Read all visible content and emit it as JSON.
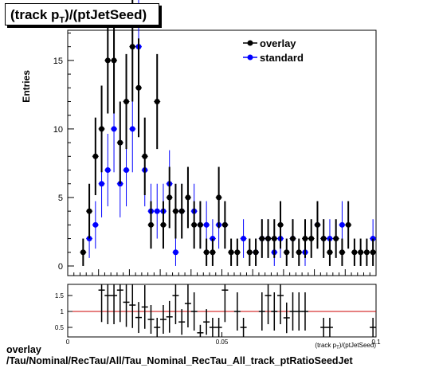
{
  "title": {
    "prefix": "(track p",
    "sub": "T",
    "suffix": ")/(ptJetSeed)"
  },
  "caption": {
    "line1": "overlay",
    "line2": "/Tau/Nominal/RecTau/All/Tau_Nominal_RecTau_All_track_ptRatioSeedJet"
  },
  "colors": {
    "overlay": "#000000",
    "standard": "#0000ff",
    "ratio_line": "#cc0000"
  },
  "chart_data": [
    {
      "type": "scatter",
      "ylabel": "Entries",
      "xlim": [
        0,
        0.1
      ],
      "ylim": [
        -0.7,
        17.2
      ],
      "yticks": [
        "0",
        "5",
        "10",
        "15"
      ],
      "legend": {
        "position": "top-right",
        "entries": [
          "overlay",
          "standard"
        ]
      },
      "series": [
        {
          "name": "overlay",
          "x": [
            0.005,
            0.007,
            0.009,
            0.011,
            0.013,
            0.015,
            0.017,
            0.019,
            0.021,
            0.023,
            0.025,
            0.027,
            0.029,
            0.031,
            0.033,
            0.035,
            0.037,
            0.039,
            0.041,
            0.043,
            0.045,
            0.047,
            0.049,
            0.051,
            0.053,
            0.055,
            0.059,
            0.061,
            0.063,
            0.065,
            0.067,
            0.069,
            0.071,
            0.073,
            0.075,
            0.077,
            0.079,
            0.081,
            0.083,
            0.085,
            0.087,
            0.089,
            0.091,
            0.093,
            0.095,
            0.097,
            0.099
          ],
          "y": [
            1,
            4,
            8,
            10,
            15,
            15,
            9,
            12,
            16,
            13,
            8,
            3,
            12,
            3,
            5,
            4,
            4,
            5,
            3,
            3,
            1,
            1,
            5,
            3,
            1,
            1,
            1,
            1,
            2,
            2,
            2,
            3,
            1,
            2,
            1,
            2,
            2,
            3,
            2,
            1,
            2,
            1,
            3,
            1,
            1,
            1,
            1
          ]
        },
        {
          "name": "standard",
          "x": [
            0.007,
            0.009,
            0.011,
            0.013,
            0.015,
            0.017,
            0.019,
            0.021,
            0.023,
            0.025,
            0.027,
            0.029,
            0.031,
            0.033,
            0.035,
            0.037,
            0.041,
            0.043,
            0.045,
            0.047,
            0.049,
            0.051,
            0.057,
            0.061,
            0.063,
            0.065,
            0.067,
            0.069,
            0.073,
            0.077,
            0.081,
            0.083,
            0.085,
            0.089,
            0.099
          ],
          "y": [
            2,
            3,
            6,
            7,
            10,
            6,
            7,
            10,
            16,
            7,
            4,
            4,
            4,
            6,
            1,
            4,
            4,
            3,
            3,
            2,
            3,
            3,
            2,
            1,
            2,
            2,
            1,
            2,
            2,
            1,
            3,
            2,
            2,
            3,
            2
          ]
        }
      ]
    },
    {
      "type": "scatter",
      "xlim": [
        0,
        0.1
      ],
      "ylim": [
        0.2,
        1.85
      ],
      "xticks": [
        "0",
        "0.05",
        "0.1"
      ],
      "yticks": [
        "0.5",
        "1",
        "1.5"
      ],
      "xlabel": "(track p_T)/(ptJetSeed)",
      "reference_line": 1,
      "series": [
        {
          "name": "overlay/standard",
          "x": [
            0.011,
            0.013,
            0.015,
            0.017,
            0.019,
            0.021,
            0.023,
            0.025,
            0.027,
            0.029,
            0.031,
            0.033,
            0.035,
            0.037,
            0.039,
            0.041,
            0.043,
            0.045,
            0.047,
            0.049,
            0.051,
            0.055,
            0.057,
            0.063,
            0.065,
            0.067,
            0.069,
            0.071,
            0.073,
            0.075,
            0.077,
            0.083,
            0.085,
            0.099
          ],
          "y": [
            1.67,
            1.5,
            1.5,
            1.67,
            1.29,
            1.2,
            0.81,
            1.14,
            0.75,
            0.5,
            0.75,
            0.83,
            1.5,
            0.67,
            1.25,
            1.0,
            0.33,
            0.67,
            0.5,
            0.5,
            1.67,
            1.0,
            0.5,
            1.0,
            1.5,
            1.0,
            1.5,
            0.8,
            1.0,
            1.0,
            1.0,
            0.5,
            0.5,
            0.5
          ]
        }
      ]
    }
  ]
}
